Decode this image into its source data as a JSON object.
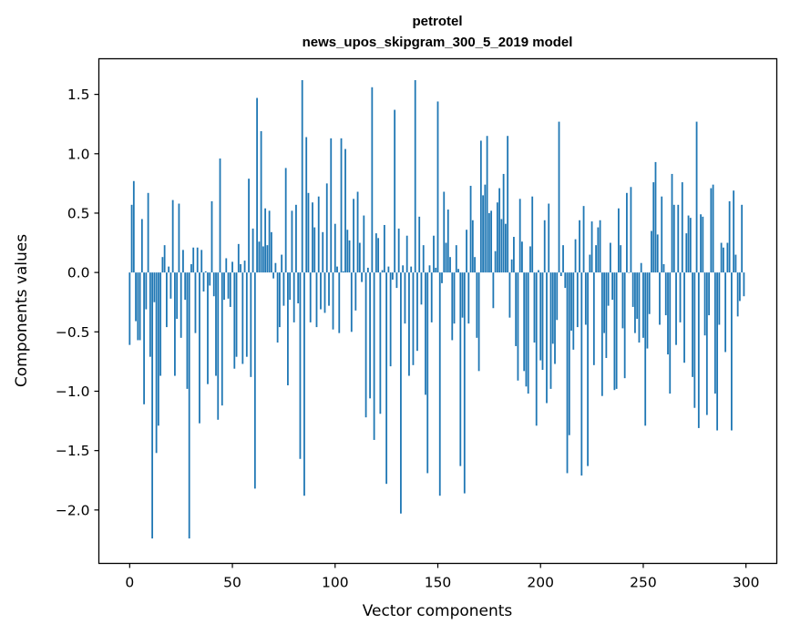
{
  "chart_data": {
    "type": "bar",
    "title": "petrotel",
    "subtitle": "news_upos_skipgram_300_5_2019 model",
    "xlabel": "Vector components",
    "ylabel": "Components values",
    "xlim": [
      -15,
      315
    ],
    "ylim": [
      -2.45,
      1.8
    ],
    "xticks": [
      0,
      50,
      100,
      150,
      200,
      250,
      300
    ],
    "xtick_labels": [
      "0",
      "50",
      "100",
      "150",
      "200",
      "250",
      "300"
    ],
    "yticks": [
      1.5,
      1.0,
      0.5,
      0.0,
      -0.5,
      -1.0,
      -1.5,
      -2.0
    ],
    "ytick_labels": [
      "1.5",
      "1.0",
      "0.5",
      "0.0",
      "−0.5",
      "−1.0",
      "−1.5",
      "−2.0"
    ],
    "grid": false,
    "color": "#1f77b4",
    "values": [
      -0.61,
      0.57,
      0.77,
      -0.41,
      -0.57,
      -0.57,
      0.45,
      -1.11,
      -0.31,
      0.67,
      -0.71,
      -2.24,
      -0.25,
      -1.52,
      -1.29,
      -0.87,
      0.13,
      0.23,
      -0.46,
      0.05,
      -0.22,
      0.61,
      -0.87,
      -0.39,
      0.58,
      -0.55,
      0.19,
      -0.23,
      -0.98,
      -2.24,
      0.07,
      0.21,
      -0.51,
      0.21,
      -1.27,
      0.19,
      -0.16,
      0.01,
      -0.94,
      -0.11,
      0.6,
      -0.2,
      -0.87,
      -1.24,
      0.96,
      -1.12,
      -0.23,
      0.12,
      -0.22,
      -0.29,
      0.09,
      -0.81,
      -0.71,
      0.24,
      0.07,
      -0.77,
      0.1,
      -0.71,
      0.79,
      -0.88,
      0.37,
      -1.82,
      1.47,
      0.26,
      1.19,
      0.22,
      0.54,
      0.23,
      0.52,
      0.34,
      -0.05,
      0.08,
      -0.59,
      -0.46,
      0.15,
      -0.28,
      0.88,
      -0.95,
      -0.23,
      0.52,
      -0.42,
      0.57,
      -0.26,
      -1.57,
      1.62,
      -1.88,
      1.14,
      0.67,
      -0.42,
      0.59,
      0.38,
      -0.46,
      0.64,
      -0.31,
      0.34,
      -0.34,
      0.75,
      -0.28,
      1.13,
      -0.48,
      0.41,
      0.05,
      -0.51,
      1.13,
      0.01,
      1.04,
      0.36,
      0.27,
      -0.5,
      0.62,
      -0.32,
      0.68,
      0.25,
      -0.08,
      0.48,
      -1.22,
      0.04,
      -1.06,
      1.56,
      -1.41,
      0.33,
      0.29,
      -1.19,
      0.02,
      0.4,
      -1.78,
      0.05,
      -0.79,
      -0.06,
      1.37,
      -0.13,
      0.37,
      -2.03,
      0.06,
      -0.43,
      0.31,
      -0.87,
      0.05,
      -0.78,
      1.62,
      -0.66,
      0.47,
      -0.27,
      0.23,
      -1.03,
      -1.69,
      0.06,
      -0.42,
      0.31,
      0.04,
      1.44,
      -1.88,
      -0.09,
      0.68,
      0.25,
      0.53,
      0.13,
      -0.57,
      -0.43,
      0.23,
      0.03,
      -1.63,
      -0.38,
      -1.86,
      0.36,
      -0.43,
      0.73,
      0.44,
      0.13,
      -0.55,
      -0.83,
      1.11,
      0.65,
      0.74,
      1.15,
      0.5,
      0.52,
      -0.3,
      0.18,
      0.59,
      0.71,
      0.45,
      0.83,
      0.41,
      1.15,
      -0.38,
      0.11,
      0.3,
      -0.62,
      -0.91,
      0.62,
      0.26,
      -0.83,
      -0.96,
      -1.02,
      0.22,
      0.64,
      -0.59,
      -1.29,
      0.02,
      -0.74,
      -0.82,
      0.44,
      -1.1,
      0.58,
      -0.98,
      -0.6,
      -0.77,
      -0.4,
      1.27,
      -0.03,
      0.23,
      -0.13,
      -1.69,
      -1.37,
      -0.49,
      -0.65,
      0.28,
      -0.46,
      0.44,
      -1.71,
      0.56,
      -0.44,
      -1.63,
      0.15,
      0.43,
      -0.78,
      0.23,
      0.38,
      0.44,
      -1.04,
      -0.51,
      -0.72,
      -0.28,
      0.25,
      -0.23,
      -0.99,
      -0.98,
      0.54,
      0.23,
      -0.47,
      -0.89,
      0.67,
      0.0,
      0.72,
      -0.29,
      -0.51,
      -0.39,
      -0.59,
      0.08,
      -0.55,
      -1.29,
      -0.64,
      -0.35,
      0.35,
      0.76,
      0.93,
      0.32,
      -0.44,
      0.64,
      0.07,
      -0.36,
      -0.69,
      -1.02,
      0.83,
      0.57,
      -0.61,
      0.57,
      -0.42,
      0.76,
      -0.76,
      0.33,
      0.48,
      0.46,
      -0.88,
      -1.14,
      1.27,
      -1.31,
      0.49,
      0.47,
      -0.53,
      -1.2,
      -0.36,
      0.71,
      0.74,
      -1.02,
      -1.33,
      -0.44,
      0.25,
      0.21,
      -0.67,
      0.25,
      0.6,
      -1.33,
      0.69,
      0.15,
      -0.37,
      -0.24,
      0.57,
      -0.2
    ]
  }
}
